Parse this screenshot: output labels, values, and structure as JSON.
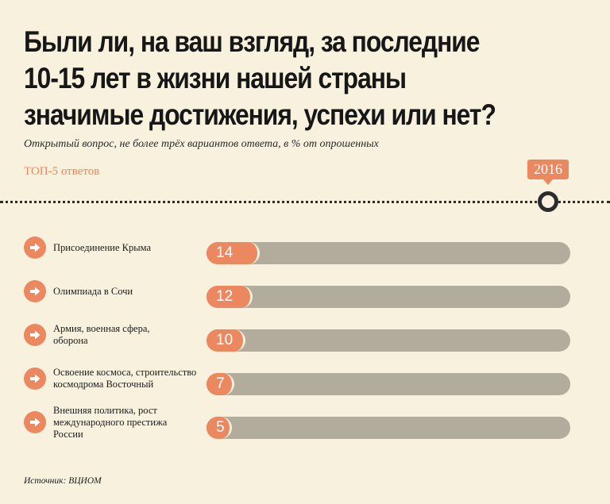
{
  "title_lines": [
    "Были ли, на ваш взгляд, за последние",
    "10-15 лет в жизни нашей страны",
    "значимые достижения, успехи или нет?"
  ],
  "subtitle": "Открытый вопрос, не более трёх вариантов ответа, в % от опрошенных",
  "section_label": "ТОП-5 ответов",
  "year": "2016",
  "source": "Источник: ВЦИОМ",
  "colors": {
    "background": "#f7f1de",
    "accent": "#ec8860",
    "track": "#b2ac9c",
    "text": "#1c1c1c"
  },
  "icons": {
    "row_bullet": "arrow-right-icon",
    "timeline_marker": "timeline-dot-icon"
  },
  "chart_data": {
    "type": "bar",
    "orientation": "horizontal",
    "title": "Были ли, на ваш взгляд, за последние 10-15 лет в жизни нашей страны значимые достижения, успехи или нет?",
    "subtitle": "Открытый вопрос, не более трёх вариантов ответа, в % от опрошенных",
    "categories": [
      "Присоединение Крыма",
      "Олимпиада в Сочи",
      "Армия, военная сфера, оборона",
      "Освоение космоса, строительство космодрома Восточный",
      "Внешняя политика, рост международного престижа России"
    ],
    "values": [
      14,
      12,
      10,
      7,
      5
    ],
    "xlim": [
      0,
      100
    ],
    "xlabel": "",
    "ylabel": "",
    "grid": false
  }
}
